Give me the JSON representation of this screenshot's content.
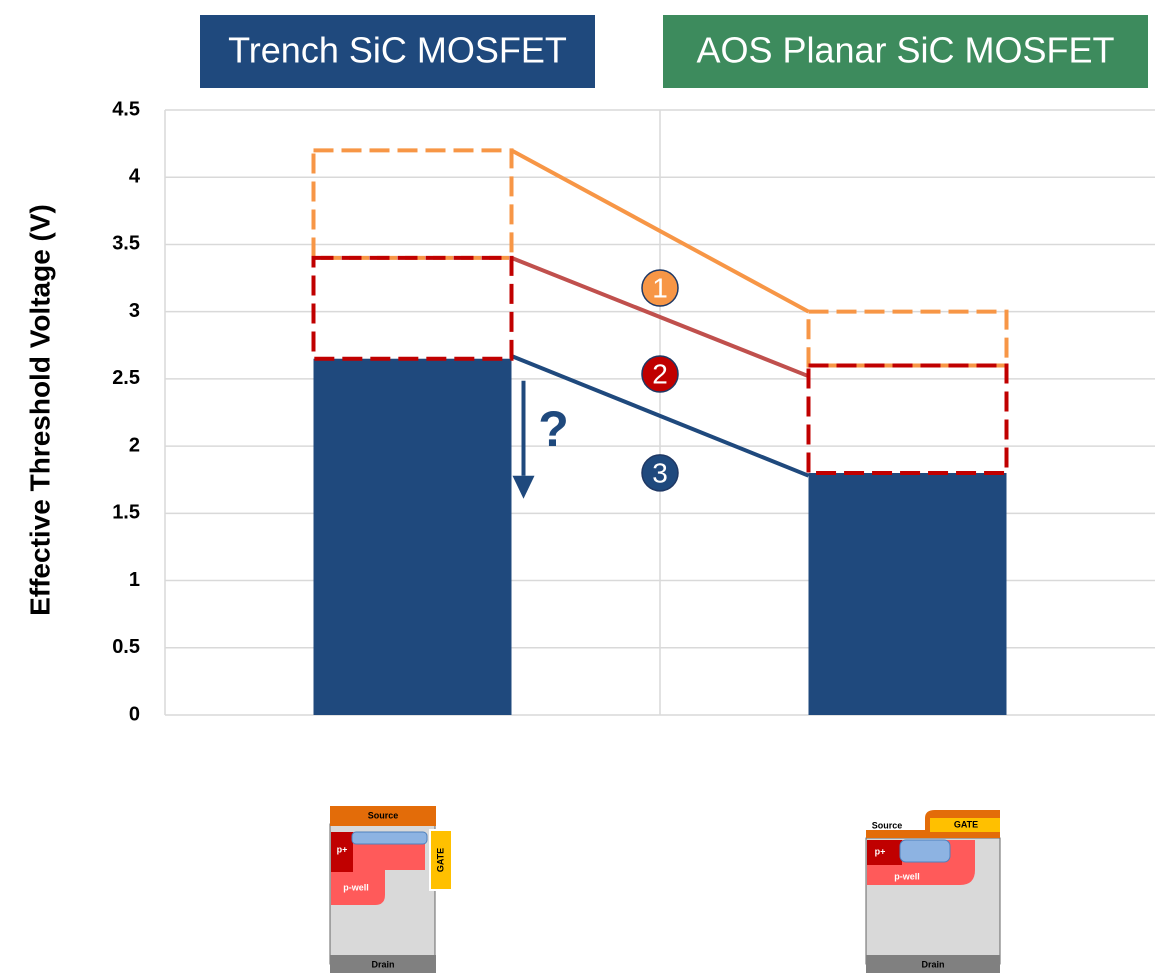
{
  "chart_data": {
    "type": "bar",
    "y_label": "Effective Threshold Voltage (V)",
    "categories": [
      "Trench SiC MOSFET",
      "AOS Planar SiC MOSFET"
    ],
    "category_colors": [
      "#1f497d",
      "#3d8b5d"
    ],
    "values": [
      2.65,
      1.8
    ],
    "color": "#1f497d",
    "ylim": [
      0,
      4.5
    ],
    "yticks": [
      0,
      0.5,
      1,
      1.5,
      2,
      2.5,
      3,
      3.5,
      4,
      4.5
    ],
    "grid": true,
    "boxes": [
      {
        "color": "#f79646",
        "low": [
          3.4,
          2.6
        ],
        "high": [
          4.2,
          3.0
        ]
      },
      {
        "color": "#c00000",
        "low": [
          2.65,
          1.8
        ],
        "high": [
          3.4,
          2.6
        ]
      }
    ],
    "lines": [
      {
        "label": "1",
        "color": "#f79646",
        "line_color": "#f79646",
        "values": [
          4.2,
          3.0
        ]
      },
      {
        "label": "2",
        "color": "#c00000",
        "line_color": "#c0504d",
        "values": [
          3.4,
          2.52
        ]
      },
      {
        "label": "3",
        "color": "#1f497d",
        "line_color": "#1f497d",
        "values": [
          2.67,
          1.78
        ]
      }
    ],
    "annotation": "?"
  },
  "devices": [
    {
      "source": "Source",
      "p_plus": "p+",
      "gate": "GATE",
      "p_well": "p-well",
      "drain": "Drain"
    },
    {
      "source": "Source",
      "p_plus": "p+",
      "gate": "GATE",
      "p_well": "p-well",
      "drain": "Drain"
    }
  ]
}
